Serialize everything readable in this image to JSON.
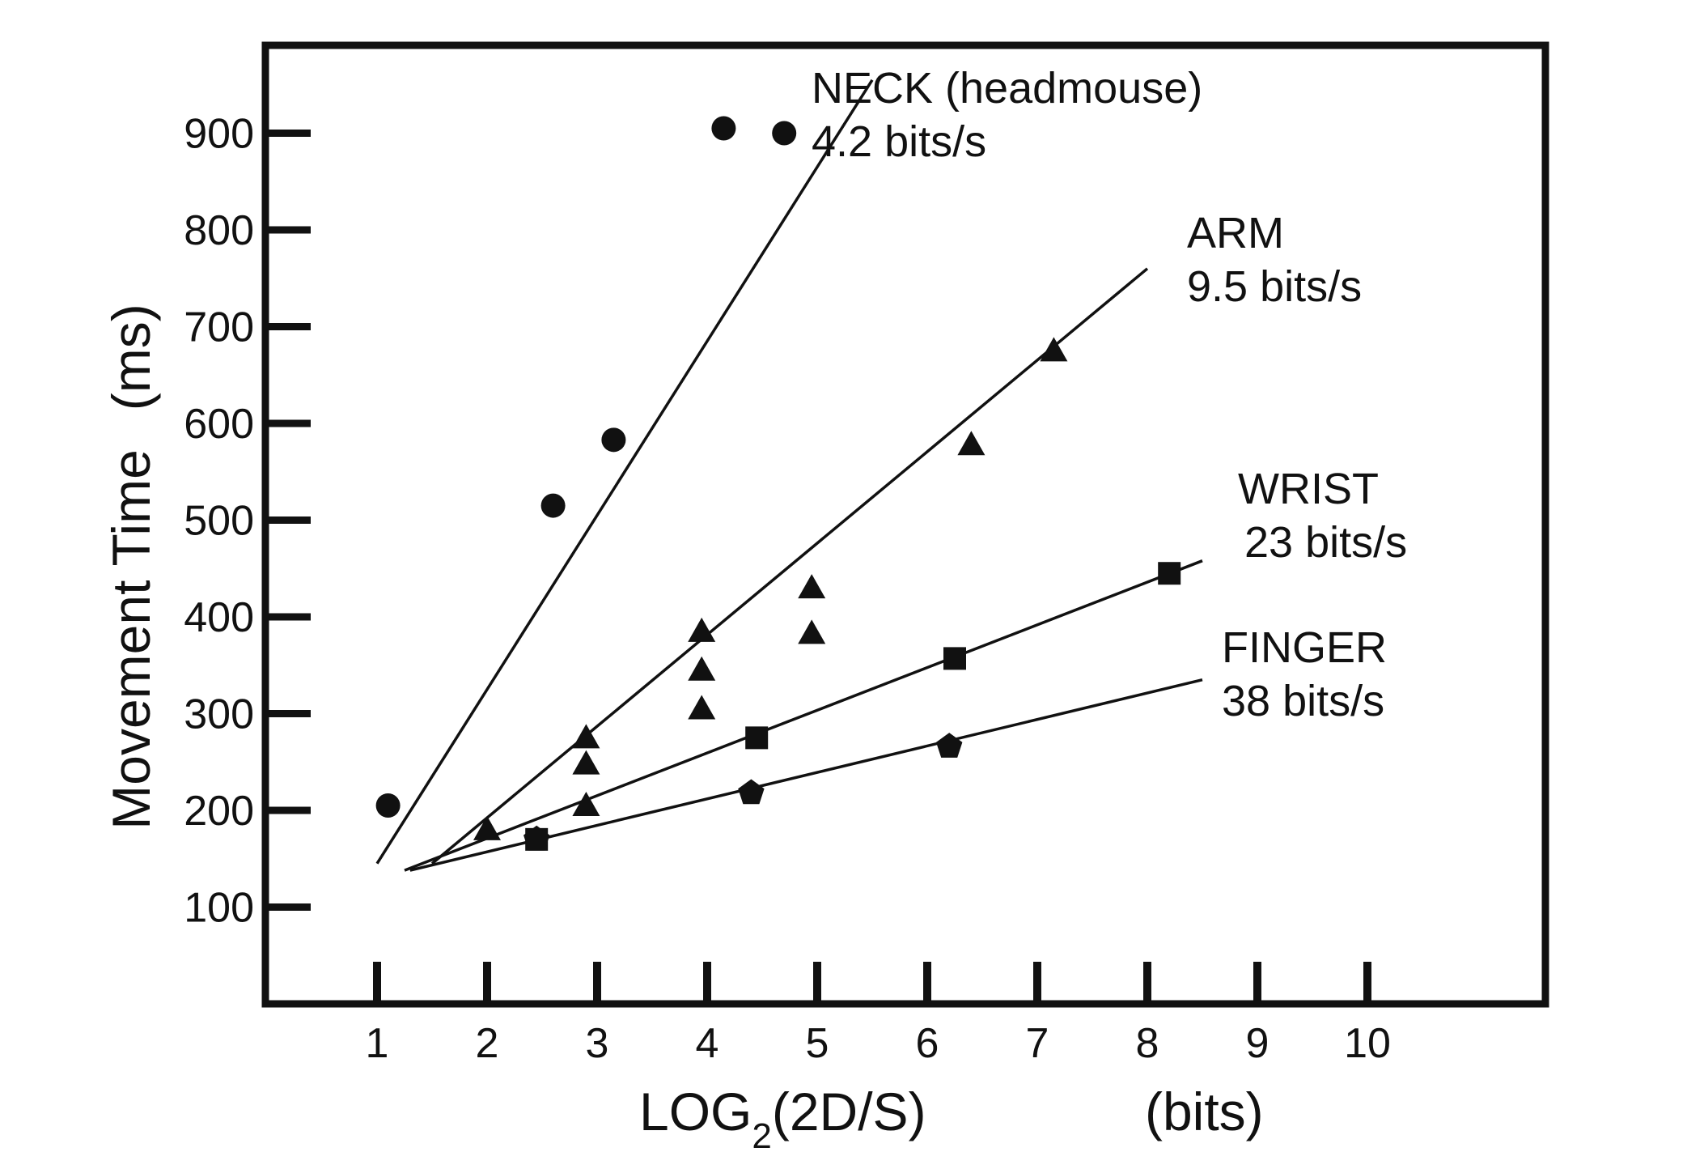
{
  "chart_data": {
    "type": "scatter",
    "title": "",
    "xlabel": "LOG",
    "xlabel_sub": "2",
    "xlabel_rest": "(2D/S)",
    "xlabel_unit": "(bits)",
    "ylabel": "Movement Time",
    "ylabel_unit": "(ms)",
    "xlim": [
      0,
      11.7
    ],
    "ylim": [
      0,
      1000
    ],
    "x_ticks": [
      1,
      2,
      3,
      4,
      5,
      6,
      7,
      8,
      9,
      10
    ],
    "x_tick_labels": [
      "1",
      "2",
      "3",
      "4",
      "5",
      "6",
      "7",
      "8",
      "9",
      "10"
    ],
    "y_ticks": [
      100,
      200,
      300,
      400,
      500,
      600,
      700,
      800,
      900
    ],
    "y_tick_labels": [
      "100",
      "200",
      "300",
      "400",
      "500",
      "600",
      "700",
      "800",
      "900"
    ],
    "grid": false,
    "series": [
      {
        "name": "NECK (headmouse)",
        "rate": "4.2 bits/s",
        "marker": "circle",
        "points": [
          [
            1.1,
            205
          ],
          [
            2.6,
            515
          ],
          [
            3.15,
            583
          ],
          [
            4.15,
            905
          ],
          [
            4.7,
            900
          ]
        ],
        "fit_line": [
          [
            1.0,
            145
          ],
          [
            5.5,
            955
          ]
        ]
      },
      {
        "name": "ARM",
        "rate": "9.5 bits/s",
        "marker": "triangle",
        "points": [
          [
            2.0,
            180
          ],
          [
            2.9,
            275
          ],
          [
            2.9,
            248
          ],
          [
            2.9,
            205
          ],
          [
            3.95,
            385
          ],
          [
            3.95,
            345
          ],
          [
            3.95,
            305
          ],
          [
            4.95,
            430
          ],
          [
            4.95,
            383
          ],
          [
            6.4,
            578
          ],
          [
            7.15,
            675
          ]
        ],
        "fit_line": [
          [
            1.5,
            145
          ],
          [
            8.0,
            760
          ]
        ]
      },
      {
        "name": "WRIST",
        "rate": "23 bits/s",
        "marker": "square",
        "points": [
          [
            2.45,
            170
          ],
          [
            4.45,
            275
          ],
          [
            6.25,
            357
          ],
          [
            8.2,
            445
          ]
        ],
        "fit_line": [
          [
            1.25,
            138
          ],
          [
            8.5,
            458
          ]
        ]
      },
      {
        "name": "FINGER",
        "rate": "38 bits/s",
        "marker": "pentagon",
        "points": [
          [
            2.45,
            170
          ],
          [
            4.4,
            218
          ],
          [
            6.2,
            266
          ]
        ],
        "fit_line": [
          [
            1.3,
            138
          ],
          [
            8.5,
            335
          ]
        ]
      }
    ]
  }
}
